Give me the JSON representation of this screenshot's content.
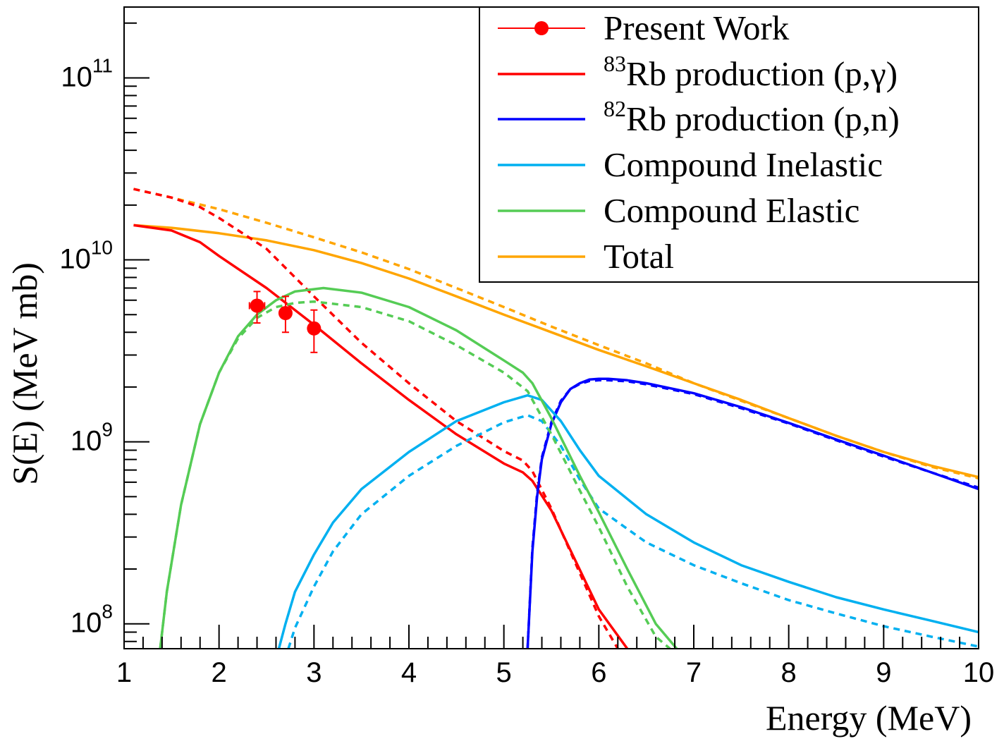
{
  "chart_data": {
    "type": "line",
    "xlabel": "Energy (MeV)",
    "ylabel": "S(E) (MeV mb)",
    "xlim": [
      1,
      10
    ],
    "ylim": [
      73000000.0,
      245000000000.0
    ],
    "yscale": "log",
    "x_ticks": [
      "1",
      "2",
      "3",
      "4",
      "5",
      "6",
      "7",
      "8",
      "9",
      "10"
    ],
    "y_ticks": [
      {
        "value": 100000000.0,
        "base": "10",
        "exp": "8"
      },
      {
        "value": 1000000000.0,
        "base": "10",
        "exp": "9"
      },
      {
        "value": 10000000000.0,
        "base": "10",
        "exp": "10"
      },
      {
        "value": 100000000000.0,
        "base": "10",
        "exp": "11"
      }
    ],
    "legend_position": "top-right",
    "legend": [
      {
        "key": "present",
        "pre": "",
        "sup": "",
        "text": "Present Work",
        "color": "#ff0000",
        "marker": true
      },
      {
        "key": "rb83",
        "pre": "",
        "sup": "83",
        "text": "Rb production (p,γ)",
        "color": "#ff0000"
      },
      {
        "key": "rb82",
        "pre": "",
        "sup": "82",
        "text": "Rb production (p,n)",
        "color": "#0000ff"
      },
      {
        "key": "inel",
        "pre": "",
        "sup": "",
        "text": "Compound Inelastic",
        "color": "#00b0f0"
      },
      {
        "key": "elas",
        "pre": "",
        "sup": "",
        "text": "Compound Elastic",
        "color": "#55cc55"
      },
      {
        "key": "total",
        "pre": "",
        "sup": "",
        "text": "Total",
        "color": "#ffa500"
      }
    ],
    "points": {
      "name": "Present Work",
      "color": "#ff0000",
      "x": [
        2.4,
        2.7,
        3.0
      ],
      "y": [
        5600000000.0,
        5100000000.0,
        4200000000.0
      ],
      "yerr_low": [
        4500000000.0,
        4000000000.0,
        3100000000.0
      ],
      "yerr_high": [
        6700000000.0,
        6300000000.0,
        5300000000.0
      ],
      "xerr": [
        0.08,
        0.0,
        0.0
      ]
    },
    "series": [
      {
        "name": "Total",
        "style": "solid",
        "color": "#ffa500",
        "x": [
          1.1,
          1.5,
          2,
          2.5,
          3,
          3.5,
          4,
          4.5,
          5,
          5.5,
          6,
          6.5,
          7,
          7.5,
          8,
          8.5,
          9,
          9.5,
          10
        ],
        "y": [
          15500000000.0,
          15000000000.0,
          14000000000.0,
          12800000000.0,
          11300000000.0,
          9600000000.0,
          7900000000.0,
          6300000000.0,
          5000000000.0,
          4000000000.0,
          3200000000.0,
          2600000000.0,
          2100000000.0,
          1700000000.0,
          1350000000.0,
          1080000000.0,
          880000000.0,
          740000000.0,
          640000000.0
        ]
      },
      {
        "name": "Total (dashed)",
        "style": "dashed",
        "color": "#ffa500",
        "x": [
          1.1,
          1.5,
          2,
          2.5,
          3,
          3.5,
          4,
          4.5,
          5,
          5.5,
          6,
          6.5,
          7,
          7.5,
          8,
          8.5,
          9,
          9.5,
          10
        ],
        "y": [
          24500000000.0,
          22000000000.0,
          19000000000.0,
          16000000000.0,
          13300000000.0,
          11000000000.0,
          8900000000.0,
          7000000000.0,
          5500000000.0,
          4300000000.0,
          3400000000.0,
          2700000000.0,
          2100000000.0,
          1680000000.0,
          1350000000.0,
          1080000000.0,
          880000000.0,
          730000000.0,
          630000000.0
        ]
      },
      {
        "name": "83Rb production (p,g)",
        "style": "solid",
        "color": "#ff0000",
        "x": [
          1.1,
          1.5,
          1.8,
          2,
          2.5,
          3,
          3.5,
          4,
          4.5,
          5,
          5.2,
          5.3,
          5.5,
          6,
          6.3
        ],
        "y": [
          15500000000.0,
          14500000000.0,
          12500000000.0,
          10500000000.0,
          7000000000.0,
          4400000000.0,
          2700000000.0,
          1700000000.0,
          1100000000.0,
          760000000.0,
          680000000.0,
          610000000.0,
          420000000.0,
          120000000.0,
          73000000.0
        ]
      },
      {
        "name": "83Rb production (p,g) (dashed)",
        "style": "dashed",
        "color": "#ff0000",
        "x": [
          1.1,
          1.5,
          1.8,
          2,
          2.5,
          3,
          3.5,
          4,
          4.5,
          5,
          5.2,
          5.3,
          5.5,
          6,
          6.2
        ],
        "y": [
          24500000000.0,
          22000000000.0,
          19500000000.0,
          17000000000.0,
          11500000000.0,
          6300000000.0,
          3500000000.0,
          2100000000.0,
          1300000000.0,
          890000000.0,
          790000000.0,
          690000000.0,
          430000000.0,
          110000000.0,
          73000000.0
        ]
      },
      {
        "name": "82Rb production (p,n)",
        "style": "solid",
        "color": "#0000ff",
        "x": [
          5.25,
          5.3,
          5.35,
          5.4,
          5.5,
          5.6,
          5.7,
          5.8,
          5.9,
          6,
          6.1,
          6.3,
          6.5,
          7,
          7.5,
          8,
          8.5,
          9,
          9.5,
          10
        ],
        "y": [
          73000000.0,
          250000000.0,
          500000000.0,
          800000000.0,
          1250000000.0,
          1650000000.0,
          1950000000.0,
          2100000000.0,
          2200000000.0,
          2220000000.0,
          2220000000.0,
          2180000000.0,
          2100000000.0,
          1850000000.0,
          1550000000.0,
          1270000000.0,
          1030000000.0,
          840000000.0,
          680000000.0,
          550000000.0
        ]
      },
      {
        "name": "82Rb production (p,n) (dashed)",
        "style": "dashed",
        "color": "#0000ff",
        "x": [
          5.25,
          5.3,
          5.35,
          5.4,
          5.5,
          5.6,
          5.7,
          5.8,
          5.9,
          6,
          6.1,
          6.3,
          6.5,
          7,
          7.5,
          8,
          8.5,
          9,
          9.5,
          10
        ],
        "y": [
          73000000.0,
          260000000.0,
          520000000.0,
          820000000.0,
          1280000000.0,
          1680000000.0,
          1950000000.0,
          2080000000.0,
          2160000000.0,
          2180000000.0,
          2180000000.0,
          2150000000.0,
          2070000000.0,
          1830000000.0,
          1530000000.0,
          1260000000.0,
          1020000000.0,
          830000000.0,
          680000000.0,
          560000000.0
        ]
      },
      {
        "name": "Compound Inelastic",
        "style": "solid",
        "color": "#00b0f0",
        "x": [
          2.63,
          2.7,
          2.8,
          3,
          3.2,
          3.5,
          4,
          4.5,
          5,
          5.25,
          5.4,
          5.6,
          5.8,
          6,
          6.5,
          7,
          7.5,
          8,
          8.5,
          9,
          9.5,
          10
        ],
        "y": [
          73000000.0,
          100000000.0,
          150000000.0,
          240000000.0,
          360000000.0,
          550000000.0,
          880000000.0,
          1300000000.0,
          1650000000.0,
          1800000000.0,
          1700000000.0,
          1300000000.0,
          900000000.0,
          650000000.0,
          400000000.0,
          280000000.0,
          210000000.0,
          170000000.0,
          140000000.0,
          120000000.0,
          104000000.0,
          90000000.0
        ]
      },
      {
        "name": "Compound Inelastic (dashed)",
        "style": "dashed",
        "color": "#00b0f0",
        "x": [
          2.73,
          2.8,
          3,
          3.2,
          3.5,
          4,
          4.5,
          5,
          5.25,
          5.4,
          5.6,
          5.8,
          6,
          6.5,
          7,
          7.5,
          8,
          8.5,
          9,
          9.5,
          10
        ],
        "y": [
          73000000.0,
          95000000.0,
          160000000.0,
          250000000.0,
          400000000.0,
          650000000.0,
          950000000.0,
          1280000000.0,
          1400000000.0,
          1300000000.0,
          950000000.0,
          620000000.0,
          430000000.0,
          280000000.0,
          210000000.0,
          167000000.0,
          135000000.0,
          114000000.0,
          97000000.0,
          85000000.0,
          75000000.0
        ]
      },
      {
        "name": "Compound Elastic",
        "style": "solid",
        "color": "#55cc55",
        "x": [
          1.38,
          1.45,
          1.6,
          1.8,
          2,
          2.2,
          2.4,
          2.6,
          2.8,
          3.1,
          3.5,
          4,
          4.5,
          5,
          5.2,
          5.3,
          5.5,
          5.8,
          6,
          6.3,
          6.6,
          6.82
        ],
        "y": [
          73000000.0,
          150000000.0,
          450000000.0,
          1250000000.0,
          2400000000.0,
          3800000000.0,
          5000000000.0,
          6000000000.0,
          6700000000.0,
          7000000000.0,
          6600000000.0,
          5500000000.0,
          4100000000.0,
          2800000000.0,
          2400000000.0,
          2100000000.0,
          1350000000.0,
          650000000.0,
          410000000.0,
          200000000.0,
          100000000.0,
          73000000.0
        ]
      },
      {
        "name": "Compound Elastic (dashed)",
        "style": "dashed",
        "color": "#55cc55",
        "x": [
          1.38,
          1.45,
          1.6,
          1.8,
          2,
          2.2,
          2.4,
          2.6,
          2.8,
          3,
          3.5,
          4,
          4.5,
          5,
          5.25,
          5.5,
          5.8,
          6,
          6.3,
          6.6,
          6.75
        ],
        "y": [
          73000000.0,
          150000000.0,
          450000000.0,
          1250000000.0,
          2400000000.0,
          3700000000.0,
          4800000000.0,
          5500000000.0,
          5800000000.0,
          5900000000.0,
          5500000000.0,
          4600000000.0,
          3400000000.0,
          2400000000.0,
          1900000000.0,
          1100000000.0,
          540000000.0,
          340000000.0,
          160000000.0,
          85000000.0,
          73000000.0
        ]
      }
    ]
  }
}
